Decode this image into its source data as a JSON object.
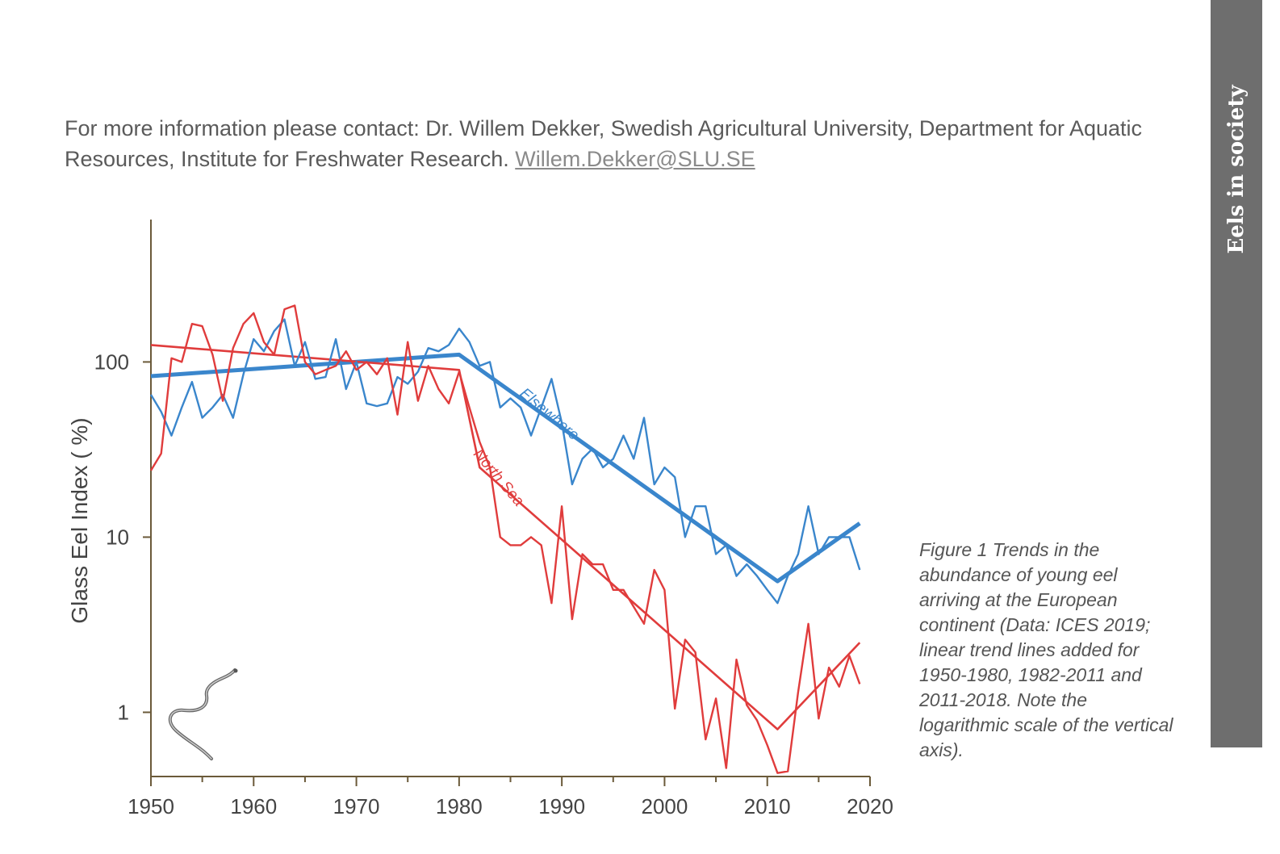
{
  "contact": {
    "text": "For more information please contact: Dr. Willem Dekker, Swedish Agricultural University, Department for Aquatic Resources, Institute for Freshwater Research.",
    "email": "Willem.Dekker@SLU.SE"
  },
  "sidebar": {
    "label": "Eels in society",
    "color": "#6e6e6e"
  },
  "caption": "Figure 1 Trends in the abundance of young eel arriving at the European continent (Data: ICES 2019; linear trend lines added for 1950-1980, 1982-2011 and 2011-2018. Note the logarithmic scale of the vertical axis).",
  "chart_data": {
    "type": "line",
    "title": "",
    "xlabel": "",
    "ylabel": "Glass Eel Index ( %)",
    "xlim": [
      1950,
      2020
    ],
    "ylim": [
      0.43,
      650
    ],
    "y_scale": "log",
    "grid": false,
    "x_ticks": [
      "1950",
      "1960",
      "1970",
      "1980",
      "1990",
      "2000",
      "2010",
      "2020"
    ],
    "y_ticks": [
      {
        "value": 100,
        "label": "100"
      },
      {
        "value": 10,
        "label": "10"
      },
      {
        "value": 1,
        "label": "1"
      }
    ],
    "series": [
      {
        "name": "Elsewhere",
        "color": "#3a86cc",
        "years": [
          1950,
          1951,
          1952,
          1953,
          1954,
          1955,
          1956,
          1957,
          1958,
          1959,
          1960,
          1961,
          1962,
          1963,
          1964,
          1965,
          1966,
          1967,
          1968,
          1969,
          1970,
          1971,
          1972,
          1973,
          1974,
          1975,
          1976,
          1977,
          1978,
          1979,
          1980,
          1981,
          1982,
          1983,
          1984,
          1985,
          1986,
          1987,
          1988,
          1989,
          1990,
          1991,
          1992,
          1993,
          1994,
          1995,
          1996,
          1997,
          1998,
          1999,
          2000,
          2001,
          2002,
          2003,
          2004,
          2005,
          2006,
          2007,
          2008,
          2009,
          2010,
          2011,
          2012,
          2013,
          2014,
          2015,
          2016,
          2017,
          2018,
          2019
        ],
        "values": [
          65,
          52,
          38,
          55,
          77,
          48,
          55,
          65,
          48,
          85,
          135,
          115,
          150,
          175,
          95,
          130,
          80,
          82,
          135,
          70,
          100,
          58,
          56,
          58,
          82,
          75,
          88,
          120,
          115,
          125,
          155,
          130,
          95,
          100,
          55,
          62,
          55,
          38,
          55,
          80,
          45,
          20,
          28,
          32,
          25,
          28,
          38,
          28,
          48,
          20,
          25,
          22,
          10,
          15,
          15,
          8,
          9,
          6,
          7,
          6,
          5,
          4.2,
          6,
          8,
          15,
          8,
          10,
          10,
          10,
          6.5
        ],
        "trend": [
          {
            "x": 1950,
            "y": 83
          },
          {
            "x": 1980,
            "y": 110
          },
          {
            "x": 2011,
            "y": 5.6
          },
          {
            "x": 2019,
            "y": 12
          }
        ]
      },
      {
        "name": "North Sea",
        "color": "#e03c3c",
        "years": [
          1950,
          1951,
          1952,
          1953,
          1954,
          1955,
          1956,
          1957,
          1958,
          1959,
          1960,
          1961,
          1962,
          1963,
          1964,
          1965,
          1966,
          1967,
          1968,
          1969,
          1970,
          1971,
          1972,
          1973,
          1974,
          1975,
          1976,
          1977,
          1978,
          1979,
          1980,
          1981,
          1982,
          1983,
          1984,
          1985,
          1986,
          1987,
          1988,
          1989,
          1990,
          1991,
          1992,
          1993,
          1994,
          1995,
          1996,
          1997,
          1998,
          1999,
          2000,
          2001,
          2002,
          2003,
          2004,
          2005,
          2006,
          2007,
          2008,
          2009,
          2010,
          2011,
          2012,
          2013,
          2014,
          2015,
          2016,
          2017,
          2018,
          2019
        ],
        "values": [
          24,
          30,
          105,
          100,
          165,
          160,
          110,
          60,
          120,
          165,
          190,
          130,
          110,
          200,
          210,
          100,
          85,
          90,
          95,
          115,
          90,
          100,
          85,
          105,
          50,
          130,
          60,
          95,
          70,
          58,
          88,
          55,
          35,
          25,
          10,
          9,
          9,
          10,
          9,
          4.2,
          15,
          3.4,
          8,
          7,
          7,
          5,
          5,
          4,
          3.2,
          6.5,
          5,
          1.05,
          2.6,
          2.2,
          0.7,
          1.2,
          0.48,
          2,
          1.1,
          0.9,
          0.65,
          0.45,
          0.46,
          1.3,
          3.2,
          0.92,
          1.8,
          1.4,
          2.1,
          1.45
        ],
        "trend": [
          {
            "x": 1950,
            "y": 125
          },
          {
            "x": 1980,
            "y": 90
          },
          {
            "x": 1982,
            "y": 25
          },
          {
            "x": 2011,
            "y": 0.8
          },
          {
            "x": 2019,
            "y": 2.5
          }
        ]
      }
    ],
    "annotations": [
      {
        "text": "Elsewhere",
        "x": 1988.5,
        "y": 48,
        "angle": 40,
        "color": "#3a86cc"
      },
      {
        "text": "North Sea",
        "x": 1983.5,
        "y": 21,
        "angle": 50,
        "color": "#e03c3c"
      }
    ]
  }
}
